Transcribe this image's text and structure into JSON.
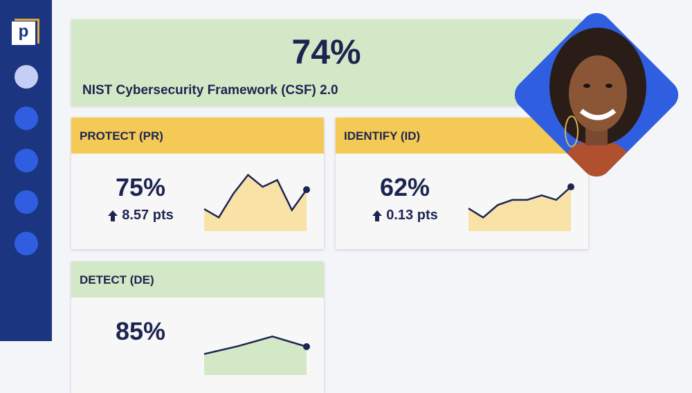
{
  "header": {
    "score": "74%",
    "title": "NIST Cybersecurity Framework (CSF) 2.0"
  },
  "cards": [
    {
      "title": "PROTECT (PR)",
      "score": "75%",
      "change": "8.57 pts",
      "color": "#f5c955",
      "fill": "#f9e2a6",
      "trend": {
        "values": [
          39,
          24,
          66,
          99,
          78,
          90,
          37,
          73
        ],
        "ylim": [
          0,
          100
        ]
      }
    },
    {
      "title": "IDENTIFY (ID)",
      "score": "62%",
      "change": "0.13 pts",
      "color": "#f5c955",
      "fill": "#f9e2a6",
      "trend": {
        "values": [
          40,
          24,
          46,
          55,
          55,
          63,
          55,
          78
        ],
        "ylim": [
          0,
          100
        ]
      }
    },
    {
      "title": "DETECT (DE)",
      "score": "85%",
      "color": "#d3e8c6",
      "fill": "#d3e8c6",
      "trend": {
        "values": [
          37,
          51,
          68,
          50
        ],
        "ylim": [
          0,
          100
        ]
      }
    }
  ]
}
